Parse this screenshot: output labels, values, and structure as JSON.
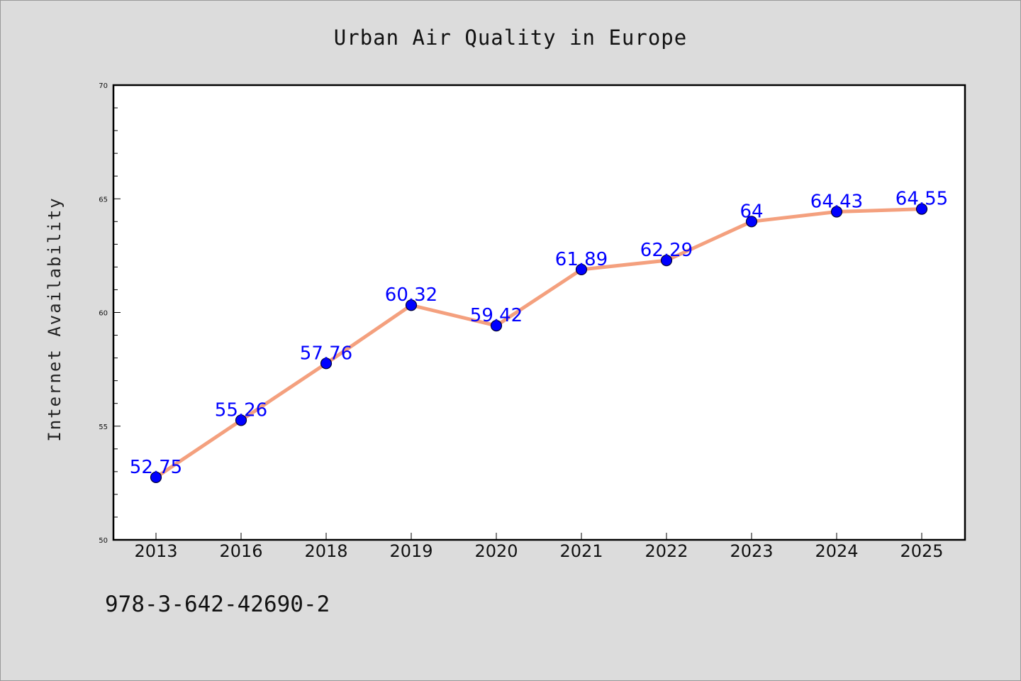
{
  "chart_data": {
    "type": "line",
    "title": "Urban Air Quality in Europe",
    "xlabel": "",
    "ylabel": "Internet Availability",
    "categories": [
      "2013",
      "2016",
      "2018",
      "2019",
      "2020",
      "2021",
      "2022",
      "2023",
      "2024",
      "2025"
    ],
    "series": [
      {
        "values": [
          52.75,
          55.26,
          57.76,
          60.32,
          59.42,
          61.89,
          62.29,
          64,
          64.43,
          64.55
        ],
        "data_labels": [
          "52.75",
          "55.26",
          "57.76",
          "60.32",
          "59.42",
          "61.89",
          "62.29",
          "64",
          "64.43",
          "64.55"
        ],
        "line_color": "#f4a07e",
        "marker_color": "#0000ff"
      }
    ],
    "ylim": [
      50,
      70
    ],
    "yticks": [
      "50",
      "55",
      "60",
      "65",
      "70"
    ],
    "grid": false,
    "legend": "none",
    "plot_background": "#ffffff",
    "page_background": "#dcdcdc"
  },
  "footer": {
    "code": "978-3-642-42690-2"
  }
}
